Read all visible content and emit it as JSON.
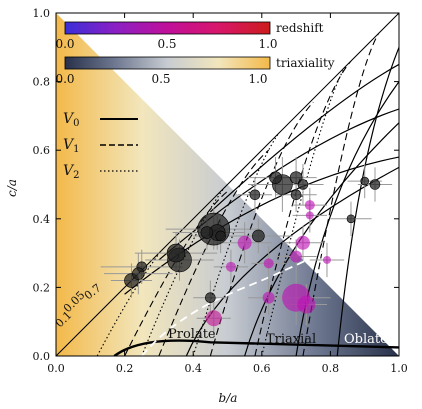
{
  "chart_data": {
    "type": "scatter",
    "xlabel": "b/a",
    "ylabel": "c/a",
    "xlim": [
      0,
      1
    ],
    "ylim": [
      0,
      1
    ],
    "xticks": [
      "0.0",
      "0.2",
      "0.4",
      "0.6",
      "0.8",
      "1.0"
    ],
    "yticks": [
      "0.0",
      "0.2",
      "0.4",
      "0.6",
      "0.8",
      "1.0"
    ],
    "colorbars": [
      {
        "label": "redshift",
        "ticks": [
          "0.0",
          "0.5",
          "1.0"
        ],
        "colors": [
          "#3a2fd8",
          "#8b1fc4",
          "#c0109a",
          "#d8166a",
          "#cc1b1b"
        ]
      },
      {
        "label": "triaxiality",
        "ticks": [
          "0.0",
          "0.5",
          "1.0"
        ],
        "colors": [
          "#28304a",
          "#707a92",
          "#c8ccd2",
          "#f2e6bc",
          "#f3b94a"
        ]
      }
    ],
    "legend": {
      "position": "upper-left",
      "entries": [
        {
          "label": "V",
          "subscript": "0",
          "style": "solid"
        },
        {
          "label": "V",
          "subscript": "1",
          "style": "dashed"
        },
        {
          "label": "V",
          "subscript": "2",
          "style": "dotted"
        }
      ]
    },
    "region_labels": [
      "Prolate",
      "Triaxial",
      "Oblate"
    ],
    "contour_labels": [
      "0.7",
      "0.05",
      "0.1"
    ],
    "points": [
      {
        "x": 0.22,
        "y": 0.22,
        "ex": 0.06,
        "ey": 0.05,
        "r": 7,
        "z": 0.05
      },
      {
        "x": 0.25,
        "y": 0.26,
        "ex": 0.12,
        "ey": 0.05,
        "r": 5,
        "z": 0.05
      },
      {
        "x": 0.36,
        "y": 0.28,
        "ex": 0.1,
        "ey": 0.06,
        "r": 12,
        "z": 0.05
      },
      {
        "x": 0.35,
        "y": 0.3,
        "ex": 0.12,
        "ey": 0.06,
        "r": 9,
        "z": 0.05
      },
      {
        "x": 0.24,
        "y": 0.24,
        "ex": 0.1,
        "ey": 0.06,
        "r": 6,
        "z": 0.05
      },
      {
        "x": 0.46,
        "y": 0.37,
        "ex": 0.14,
        "ey": 0.06,
        "r": 16,
        "z": 0.05
      },
      {
        "x": 0.47,
        "y": 0.36,
        "ex": 0.08,
        "ey": 0.05,
        "r": 8,
        "z": 0.05
      },
      {
        "x": 0.44,
        "y": 0.36,
        "ex": 0.1,
        "ey": 0.05,
        "r": 6,
        "z": 0.05
      },
      {
        "x": 0.48,
        "y": 0.35,
        "ex": 0.08,
        "ey": 0.05,
        "r": 5,
        "z": 0.05
      },
      {
        "x": 0.59,
        "y": 0.35,
        "ex": 0.1,
        "ey": 0.05,
        "r": 6,
        "z": 0.1
      },
      {
        "x": 0.45,
        "y": 0.17,
        "ex": 0.05,
        "ey": 0.05,
        "r": 5,
        "z": 0.05
      },
      {
        "x": 0.66,
        "y": 0.5,
        "ex": 0.1,
        "ey": 0.08,
        "r": 10,
        "z": 0.05
      },
      {
        "x": 0.64,
        "y": 0.52,
        "ex": 0.08,
        "ey": 0.06,
        "r": 6,
        "z": 0.05
      },
      {
        "x": 0.7,
        "y": 0.52,
        "ex": 0.06,
        "ey": 0.06,
        "r": 6,
        "z": 0.1
      },
      {
        "x": 0.72,
        "y": 0.5,
        "ex": 0.06,
        "ey": 0.06,
        "r": 5,
        "z": 0.05
      },
      {
        "x": 0.7,
        "y": 0.47,
        "ex": 0.06,
        "ey": 0.05,
        "r": 5,
        "z": 0.05
      },
      {
        "x": 0.58,
        "y": 0.47,
        "ex": 0.05,
        "ey": 0.05,
        "r": 5,
        "z": 0.05
      },
      {
        "x": 0.86,
        "y": 0.4,
        "ex": 0.06,
        "ey": 0.05,
        "r": 4,
        "z": 0.05
      },
      {
        "x": 0.93,
        "y": 0.5,
        "ex": 0.05,
        "ey": 0.05,
        "r": 5,
        "z": 0.05
      },
      {
        "x": 0.9,
        "y": 0.51,
        "ex": 0.05,
        "ey": 0.05,
        "r": 4,
        "z": 0.05
      },
      {
        "x": 0.55,
        "y": 0.33,
        "ex": 0.08,
        "ey": 0.06,
        "r": 7,
        "z": 0.75
      },
      {
        "x": 0.72,
        "y": 0.33,
        "ex": 0.06,
        "ey": 0.05,
        "r": 7,
        "z": 0.75
      },
      {
        "x": 0.7,
        "y": 0.29,
        "ex": 0.06,
        "ey": 0.05,
        "r": 6,
        "z": 0.7
      },
      {
        "x": 0.62,
        "y": 0.27,
        "ex": 0.05,
        "ey": 0.05,
        "r": 5,
        "z": 0.75
      },
      {
        "x": 0.51,
        "y": 0.26,
        "ex": 0.05,
        "ey": 0.05,
        "r": 5,
        "z": 0.7
      },
      {
        "x": 0.62,
        "y": 0.17,
        "ex": 0.06,
        "ey": 0.05,
        "r": 6,
        "z": 0.7
      },
      {
        "x": 0.7,
        "y": 0.17,
        "ex": 0.1,
        "ey": 0.08,
        "r": 14,
        "z": 0.72
      },
      {
        "x": 0.73,
        "y": 0.15,
        "ex": 0.06,
        "ey": 0.06,
        "r": 9,
        "z": 0.75
      },
      {
        "x": 0.46,
        "y": 0.11,
        "ex": 0.05,
        "ey": 0.05,
        "r": 8,
        "z": 0.8
      },
      {
        "x": 0.74,
        "y": 0.44,
        "ex": 0.05,
        "ey": 0.05,
        "r": 5,
        "z": 0.75
      },
      {
        "x": 0.74,
        "y": 0.41,
        "ex": 0.05,
        "ey": 0.05,
        "r": 4,
        "z": 0.7
      },
      {
        "x": 0.79,
        "y": 0.28,
        "ex": 0.05,
        "ey": 0.05,
        "r": 4,
        "z": 0.7
      }
    ]
  }
}
